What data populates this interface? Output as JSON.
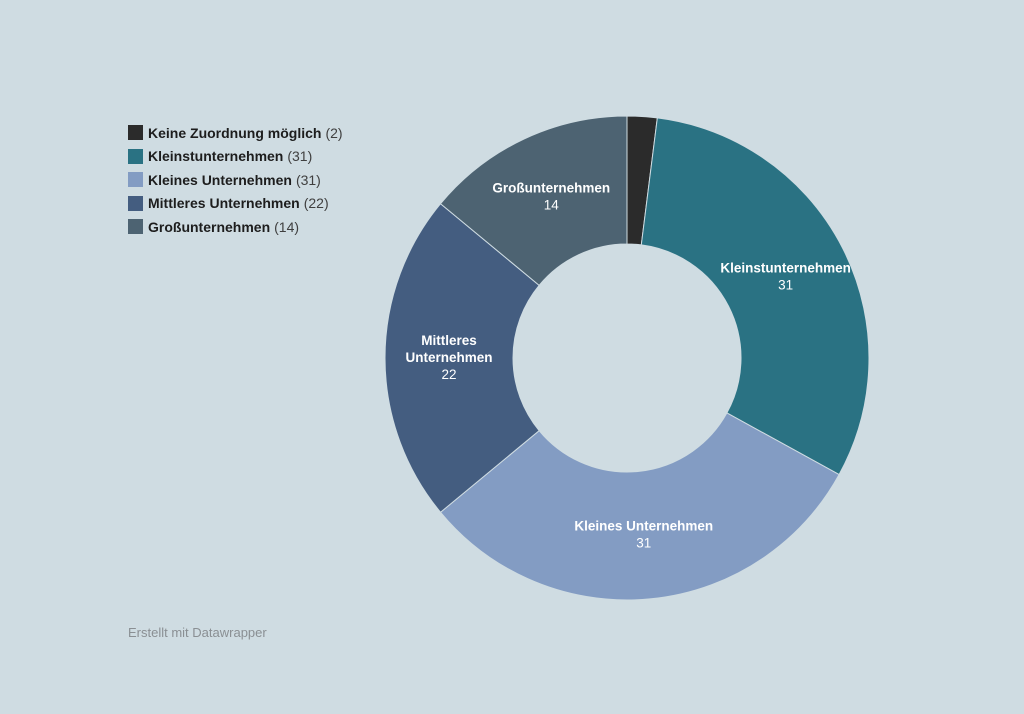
{
  "chart_data": {
    "type": "pie",
    "subtype": "donut",
    "title": "",
    "categories": [
      "Keine Zuordnung möglich",
      "Kleinstunternehmen",
      "Kleines Unternehmen",
      "Mittleres Unternehmen",
      "Großunternehmen"
    ],
    "values": [
      2,
      31,
      31,
      22,
      14
    ],
    "colors": [
      "#2b2b2b",
      "#2a7283",
      "#839cc3",
      "#445d80",
      "#4d6372"
    ],
    "slice_labels": [
      {
        "lines": [],
        "value": ""
      },
      {
        "lines": [
          "Kleinstunternehmen"
        ],
        "value": "31"
      },
      {
        "lines": [
          "Kleines Unternehmen"
        ],
        "value": "31"
      },
      {
        "lines": [
          "Mittleres",
          "Unternehmen"
        ],
        "value": "22"
      },
      {
        "lines": [
          "Großunternehmen"
        ],
        "value": "14"
      }
    ],
    "legend": {
      "position": "top-left",
      "items": [
        {
          "label": "Keine Zuordnung möglich",
          "value": "(2)"
        },
        {
          "label": "Kleinstunternehmen",
          "value": "(31)"
        },
        {
          "label": "Kleines Unternehmen",
          "value": "(31)"
        },
        {
          "label": "Mittleres Unternehmen",
          "value": "(22)"
        },
        {
          "label": "Großunternehmen",
          "value": "(14)"
        }
      ]
    }
  },
  "background_color": "#cfdce2",
  "footer": {
    "credit": "Erstellt mit Datawrapper"
  }
}
